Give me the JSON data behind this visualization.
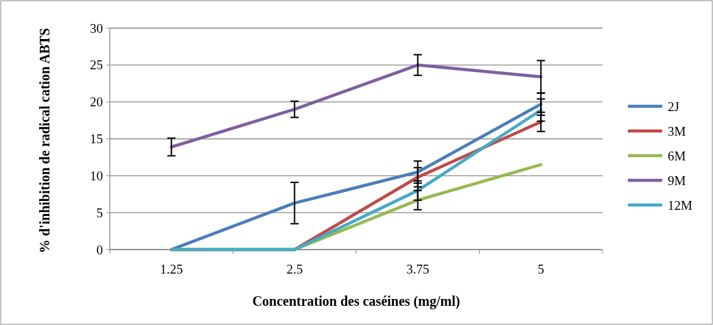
{
  "chart_data": {
    "type": "line",
    "xlabel": "Concentration des caséines  (mg/ml)",
    "ylabel": "% d'inhibition de radical cation ABTS",
    "categories": [
      "1.25",
      "2.5",
      "3.75",
      "5"
    ],
    "series": [
      {
        "name": "2J",
        "color": "#4a7ebb",
        "values": [
          0,
          6.3,
          10.5,
          19.7
        ],
        "errors": [
          null,
          2.8,
          1.5,
          1.5
        ]
      },
      {
        "name": "3M",
        "color": "#be4b48",
        "values": [
          0,
          0,
          9.8,
          17.3
        ],
        "errors": [
          null,
          null,
          1.3,
          1.3
        ]
      },
      {
        "name": "6M",
        "color": "#98b954",
        "values": [
          0,
          0,
          6.7,
          11.5
        ],
        "errors": [
          null,
          null,
          1.3,
          null
        ]
      },
      {
        "name": "9M",
        "color": "#7d60a0",
        "values": [
          13.9,
          19,
          25,
          23.4
        ],
        "errors": [
          1.2,
          1.1,
          1.4,
          2.2
        ]
      },
      {
        "name": "12M",
        "color": "#46aac5",
        "values": [
          0,
          0,
          8,
          18.9
        ],
        "errors": [
          null,
          null,
          1.3,
          1.5
        ]
      }
    ],
    "ylim": [
      0,
      30
    ],
    "yticks": [
      0,
      5,
      10,
      15,
      20,
      25,
      30
    ],
    "grid": "y",
    "legend": "right",
    "marker": "none",
    "line_style": "solid"
  }
}
